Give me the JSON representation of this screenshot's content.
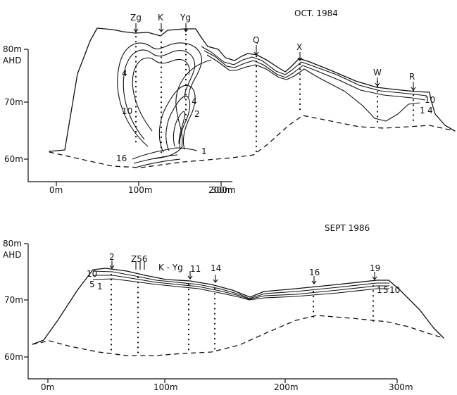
{
  "panel_1984": {
    "title": "OCT. 1984",
    "y_unit": "AHD",
    "y_ticks": [
      "80m",
      "70m",
      "60m"
    ],
    "x_ticks": [
      "0m",
      "100m",
      "200m",
      "300m"
    ],
    "station_labels": [
      "Zg",
      "K",
      "Yg",
      "Q",
      "X",
      "W",
      "R"
    ],
    "contour_labels": [
      "4",
      "10",
      "16",
      "1",
      "4",
      "2",
      "10",
      "1",
      "4"
    ]
  },
  "panel_1986": {
    "title": "SEPT 1986",
    "y_unit": "AHD",
    "y_ticks": [
      "80m",
      "70m",
      "60m"
    ],
    "x_ticks": [
      "0m",
      "100m",
      "200m",
      "300m"
    ],
    "station_labels": [
      "2",
      "Z56",
      "K - Yg",
      "11",
      "14",
      "16",
      "19"
    ],
    "contour_labels_left": [
      "10",
      "5",
      "1"
    ],
    "contour_labels_right": [
      "1",
      "5",
      "10"
    ]
  },
  "colors": {
    "ink": "#111111",
    "paper": "#ffffff"
  }
}
